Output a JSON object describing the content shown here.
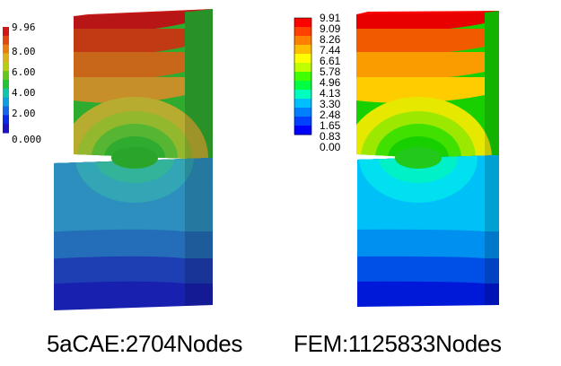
{
  "left_panel": {
    "caption": "5aCAE:2704Nodes",
    "legend_labels": [
      "9.96",
      "8.00",
      "6.00",
      "4.00",
      "2.00",
      "0.000"
    ],
    "legend_colors": [
      "#d01818",
      "#e04a12",
      "#e88010",
      "#dcb21a",
      "#b7cc12",
      "#63c81a",
      "#22c437",
      "#10c6a6",
      "#0f9ee0",
      "#1666e8",
      "#0f2ae4",
      "#1f13c0"
    ],
    "top_block_colors": [
      "#b81616",
      "#c13a14",
      "#c8661a",
      "#c78f2a",
      "#b7ac30",
      "#93b82d",
      "#56b532",
      "#2fab2f"
    ],
    "bottom_block_colors": [
      "#1820b0",
      "#1e3fb4",
      "#246db9",
      "#2d8fbe",
      "#32a6b4",
      "#33b39a"
    ]
  },
  "right_panel": {
    "caption": "FEM:1125833Nodes",
    "legend_labels": [
      "9.91",
      "9.09",
      "8.26",
      "7.44",
      "6.61",
      "5.78",
      "4.96",
      "4.13",
      "3.30",
      "2.48",
      "1.65",
      "0.83",
      "0.00"
    ],
    "legend_colors": [
      "#ff0000",
      "#ff4000",
      "#ff8000",
      "#ffbf00",
      "#ffff00",
      "#bfff00",
      "#40ff00",
      "#00ff40",
      "#00ffbf",
      "#00bfff",
      "#0080ff",
      "#0040ff",
      "#0000ff"
    ],
    "top_block_colors": [
      "#e80000",
      "#f25a00",
      "#fa9c00",
      "#ffcc00",
      "#e6e800",
      "#9ce800",
      "#40e000",
      "#18d000"
    ],
    "bottom_block_colors": [
      "#0018d8",
      "#0050e8",
      "#0090f0",
      "#00c0f8",
      "#00e0f0",
      "#00f0c8"
    ]
  }
}
